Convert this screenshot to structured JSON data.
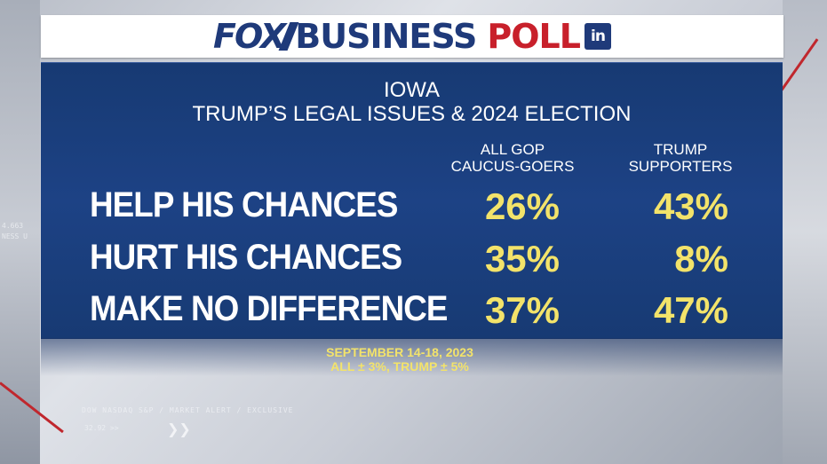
{
  "header": {
    "brand_fox": "FOX",
    "brand_business": "BUSINESS",
    "brand_poll": "POLL",
    "brand_badge": "in"
  },
  "panel": {
    "title_line1": "IOWA",
    "title_line2": "TRUMP’S LEGAL ISSUES & 2024 ELECTION",
    "columns": [
      {
        "line1": "ALL GOP",
        "line2": "CAUCUS-GOERS"
      },
      {
        "line1": "TRUMP",
        "line2": "SUPPORTERS"
      }
    ],
    "rows": [
      {
        "label": "HELP HIS CHANCES",
        "all_gop": "26%",
        "trump": "43%"
      },
      {
        "label": "HURT HIS CHANCES",
        "all_gop": "35%",
        "trump": "8%"
      },
      {
        "label": "MAKE NO DIFFERENCE",
        "all_gop": "37%",
        "trump": "47%"
      }
    ]
  },
  "footer": {
    "dates": "SEPTEMBER 14-18, 2023",
    "margin": "ALL ± 3%, TRUMP ± 5%"
  },
  "background": {
    "ticker_text": "DOW NASDAQ S&P / MARKET ALERT / EXCLUSIVE",
    "ticker_value": "32.92 >>",
    "side_text_1": "4.663",
    "side_text_2": "NESS U"
  },
  "colors": {
    "panel_blue": "#1d4285",
    "brand_blue": "#1f3a7a",
    "brand_red": "#c8202b",
    "value_yellow": "#f3e36a"
  }
}
